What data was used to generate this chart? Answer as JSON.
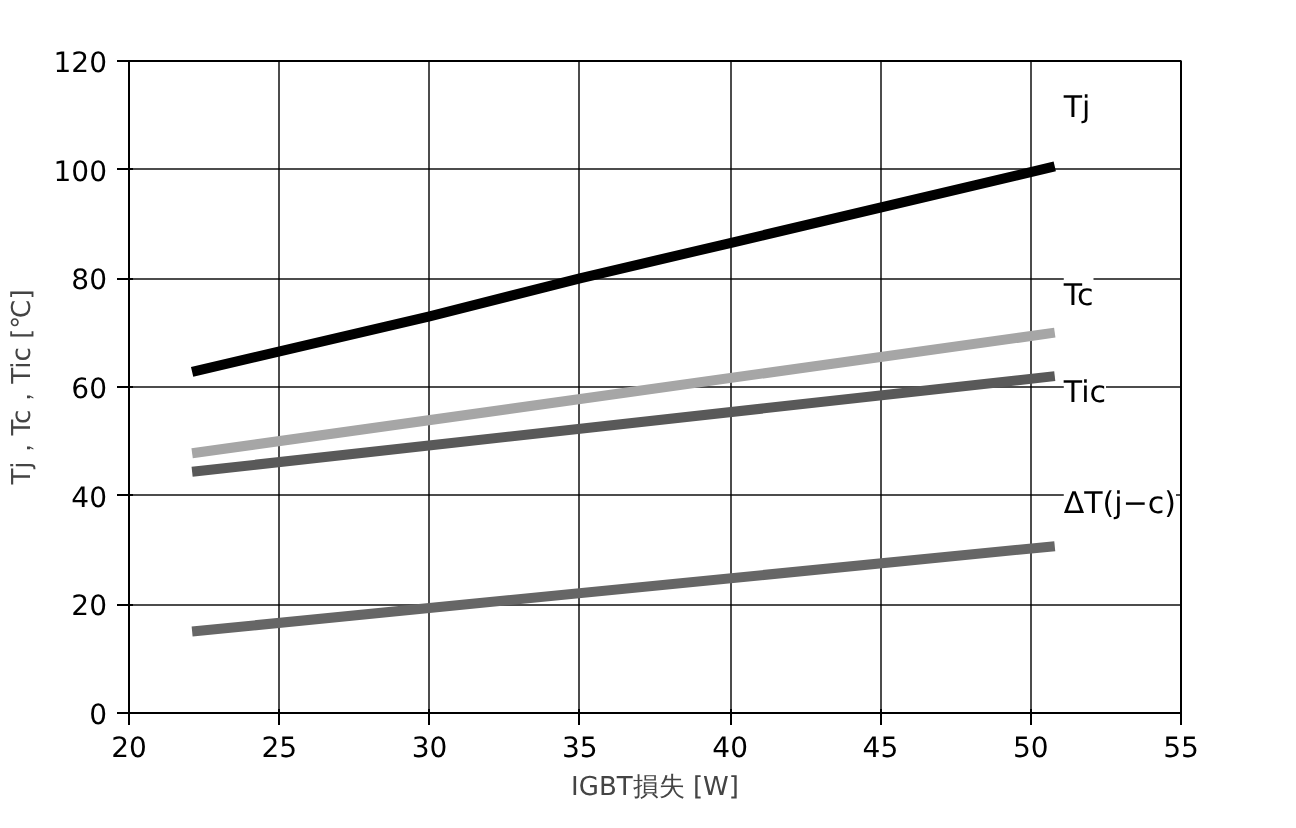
{
  "chart_data": {
    "type": "line",
    "xlabel": "IGBT損失 [W]",
    "ylabel": "Tj，Tc，Tic [℃]",
    "xlim": [
      20,
      55
    ],
    "xticks": [
      20,
      25,
      30,
      35,
      40,
      45,
      50,
      55
    ],
    "ylim": [
      0,
      120
    ],
    "yticks": [
      0,
      20,
      40,
      60,
      80,
      100,
      120
    ],
    "grid": true,
    "marker": "none",
    "line_style": "solid",
    "series": [
      {
        "name": "Tj",
        "color": "#000000",
        "x": [
          22.1,
          30,
          35,
          40,
          50.8
        ],
        "values": [
          62.8,
          73,
          80,
          86.5,
          100.6
        ]
      },
      {
        "name": "Tc",
        "color": "#a6a6a6",
        "x": [
          22.1,
          50.8
        ],
        "values": [
          47.8,
          70
        ]
      },
      {
        "name": "Tic",
        "color": "#595959",
        "x": [
          22.1,
          50.8
        ],
        "values": [
          44.4,
          62
        ]
      },
      {
        "name": "ΔT(j−c)",
        "color": "#666666",
        "x": [
          22.1,
          50.8
        ],
        "values": [
          15,
          30.7
        ]
      }
    ]
  }
}
